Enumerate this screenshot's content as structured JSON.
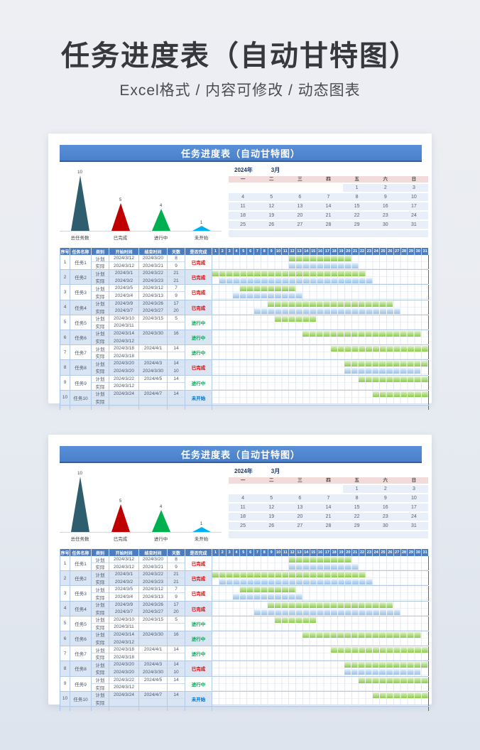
{
  "page": {
    "title": "任务进度表（自动甘特图）",
    "subtitle": "Excel格式 / 内容可修改 / 动态图表"
  },
  "chart_data": {
    "type": "bar",
    "shape": "triangle",
    "categories": [
      "总任务数",
      "已完成",
      "进行中",
      "未开始"
    ],
    "values": [
      10,
      5,
      4,
      1
    ],
    "colors": [
      "#2e5e6e",
      "#c00000",
      "#00b050",
      "#00b0f0"
    ],
    "ylim": [
      0,
      10
    ],
    "title": "",
    "xlabel": "",
    "ylabel": "",
    "legend": "none",
    "grid": false
  },
  "card": {
    "header_title": "任务进度表（自动甘特图）",
    "calendar": {
      "year_label": "2024年",
      "month_label": "3月",
      "weekdays": [
        "一",
        "二",
        "三",
        "四",
        "五",
        "六",
        "日"
      ],
      "weeks": [
        [
          "",
          "",
          "",
          "",
          "1",
          "2",
          "3"
        ],
        [
          "4",
          "5",
          "6",
          "7",
          "8",
          "9",
          "10"
        ],
        [
          "11",
          "12",
          "13",
          "14",
          "15",
          "16",
          "17"
        ],
        [
          "18",
          "19",
          "20",
          "21",
          "22",
          "23",
          "24"
        ],
        [
          "25",
          "26",
          "27",
          "28",
          "29",
          "30",
          "31"
        ]
      ]
    },
    "table": {
      "headers": {
        "no": "序号",
        "name": "任务名称",
        "category": "类别",
        "start": "开始时间",
        "end": "结束时间",
        "days": "天数",
        "status": "是否完成"
      },
      "day_numbers": [
        1,
        2,
        3,
        4,
        5,
        6,
        7,
        8,
        9,
        10,
        11,
        12,
        13,
        14,
        15,
        16,
        17,
        18,
        19,
        20,
        21,
        22,
        23,
        24,
        25,
        26,
        27,
        28,
        29,
        30,
        31
      ],
      "plan_label": "计划",
      "actual_label": "实际",
      "status_styles": {
        "done": {
          "label": "已完成",
          "color": "#e60000"
        },
        "doing": {
          "label": "进行中",
          "color": "#00a651"
        },
        "todo": {
          "label": "未开始",
          "color": "#0070c0"
        }
      },
      "tasks": [
        {
          "no": "1",
          "name": "任务1",
          "status": "done",
          "plan": {
            "start": "2024/3/12",
            "end": "2024/3/20",
            "days": "8",
            "bar": [
              12,
              20
            ]
          },
          "actual": {
            "start": "2024/3/12",
            "end": "2024/3/21",
            "days": "9",
            "bar": [
              12,
              21
            ]
          }
        },
        {
          "no": "2",
          "name": "任务2",
          "status": "done",
          "plan": {
            "start": "2024/3/1",
            "end": "2024/3/22",
            "days": "21",
            "bar": [
              1,
              22
            ]
          },
          "actual": {
            "start": "2024/3/2",
            "end": "2024/3/23",
            "days": "21",
            "bar": [
              2,
              23
            ]
          }
        },
        {
          "no": "3",
          "name": "任务3",
          "status": "done",
          "plan": {
            "start": "2024/3/5",
            "end": "2024/3/12",
            "days": "7",
            "bar": [
              5,
              12
            ]
          },
          "actual": {
            "start": "2024/3/4",
            "end": "2024/3/13",
            "days": "9",
            "bar": [
              4,
              13
            ]
          }
        },
        {
          "no": "4",
          "name": "任务4",
          "status": "done",
          "plan": {
            "start": "2024/3/9",
            "end": "2024/3/26",
            "days": "17",
            "bar": [
              9,
              26
            ]
          },
          "actual": {
            "start": "2024/3/7",
            "end": "2024/3/27",
            "days": "20",
            "bar": [
              7,
              27
            ]
          }
        },
        {
          "no": "5",
          "name": "任务5",
          "status": "doing",
          "plan": {
            "start": "2024/3/10",
            "end": "2024/3/15",
            "days": "5",
            "bar": [
              10,
              15
            ]
          },
          "actual": {
            "start": "2024/3/11",
            "end": "",
            "days": "",
            "bar": null
          }
        },
        {
          "no": "6",
          "name": "任务6",
          "status": "doing",
          "plan": {
            "start": "2024/3/14",
            "end": "2024/3/30",
            "days": "16",
            "bar": [
              14,
              30
            ]
          },
          "actual": {
            "start": "2024/3/12",
            "end": "",
            "days": "",
            "bar": null
          }
        },
        {
          "no": "7",
          "name": "任务7",
          "status": "doing",
          "plan": {
            "start": "2024/3/18",
            "end": "2024/4/1",
            "days": "14",
            "bar": [
              18,
              31
            ]
          },
          "actual": {
            "start": "2024/3/18",
            "end": "",
            "days": "",
            "bar": null
          }
        },
        {
          "no": "8",
          "name": "任务8",
          "status": "done",
          "plan": {
            "start": "2024/3/20",
            "end": "2024/4/3",
            "days": "14",
            "bar": [
              20,
              31
            ]
          },
          "actual": {
            "start": "2024/3/20",
            "end": "2024/3/30",
            "days": "10",
            "bar": [
              20,
              30
            ]
          }
        },
        {
          "no": "9",
          "name": "任务9",
          "status": "doing",
          "plan": {
            "start": "2024/3/22",
            "end": "2024/4/5",
            "days": "14",
            "bar": [
              22,
              31
            ]
          },
          "actual": {
            "start": "2024/3/12",
            "end": "",
            "days": "",
            "bar": null
          }
        },
        {
          "no": "10",
          "name": "任务10",
          "status": "todo",
          "plan": {
            "start": "2024/3/24",
            "end": "2024/4/7",
            "days": "14",
            "bar": [
              24,
              31
            ]
          },
          "actual": {
            "start": "",
            "end": "",
            "days": "",
            "bar": null
          }
        }
      ]
    }
  },
  "colors": {
    "card_header_bg": "#4a80c9",
    "table_header_bg": "#4c7dc0",
    "row_shade": "#d9e5f3",
    "calendar_weekday_bg": "#f2dcdb",
    "calendar_cell_bg": "#e8eff9",
    "bar_plan": "#8ecb4f",
    "bar_actual": "#9fc3e9",
    "status_done": "#e60000",
    "status_doing": "#00a651",
    "status_todo": "#0070c0"
  }
}
